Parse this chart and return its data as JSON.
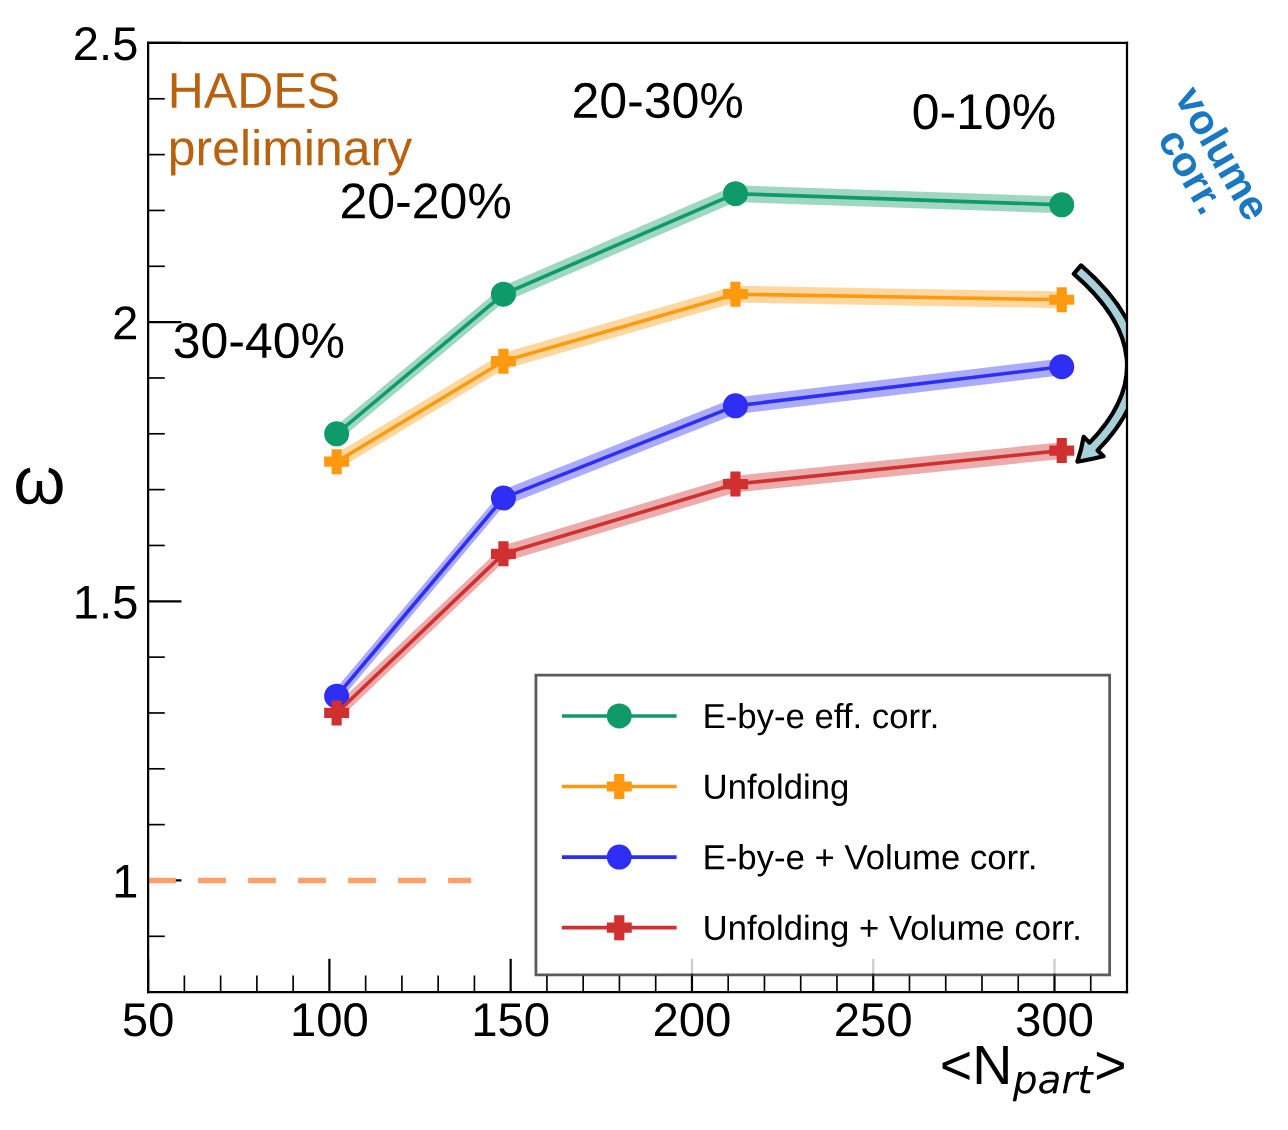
{
  "chart_data": {
    "type": "line",
    "xlabel": "<N$_{part}$>",
    "ylabel": "ω",
    "xlim": [
      50,
      320
    ],
    "xticks": [
      50,
      100,
      150,
      200,
      250,
      300
    ],
    "ylim": [
      0.8,
      2.5
    ],
    "yticks": [
      1,
      1.5,
      2,
      2.5
    ],
    "grid": false,
    "legend": "bottom right",
    "line_style": "solid",
    "series": [
      {
        "name": "E-by-e eff. corr.",
        "color": "#0f9a6a",
        "marker": "circle",
        "x": [
          102,
          148,
          212,
          302
        ],
        "values": [
          1.8,
          2.05,
          2.23,
          2.21
        ],
        "lower": [
          1.785,
          2.035,
          2.215,
          2.195
        ],
        "upper": [
          1.815,
          2.065,
          2.245,
          2.225
        ]
      },
      {
        "name": "Unfolding",
        "color": "#ff9a10",
        "marker": "cross",
        "x": [
          102,
          148,
          212,
          302
        ],
        "values": [
          1.75,
          1.93,
          2.05,
          2.04
        ],
        "lower": [
          1.735,
          1.915,
          2.035,
          2.025
        ],
        "upper": [
          1.765,
          1.945,
          2.065,
          2.055
        ]
      },
      {
        "name": "E-by-e + Volume corr.",
        "color": "#2e2ef5",
        "marker": "circle",
        "x": [
          102,
          148,
          212,
          302
        ],
        "values": [
          1.33,
          1.685,
          1.85,
          1.92
        ],
        "lower": [
          1.315,
          1.67,
          1.835,
          1.905
        ],
        "upper": [
          1.345,
          1.7,
          1.865,
          1.935
        ]
      },
      {
        "name": "Unfolding + Volume corr.",
        "color": "#d03030",
        "marker": "cross",
        "x": [
          102,
          148,
          212,
          302
        ],
        "values": [
          1.3,
          1.585,
          1.71,
          1.77
        ],
        "lower": [
          1.285,
          1.57,
          1.695,
          1.755
        ],
        "upper": [
          1.315,
          1.6,
          1.725,
          1.785
        ]
      }
    ],
    "ref_lines": [
      {
        "axis": "y",
        "value": 1,
        "color": "#ff9f6b",
        "line_style": "dashed"
      }
    ],
    "annotations": [
      "HADES\npreliminary",
      "volume\ncorr.",
      {
        "text": "30-40%",
        "x": 102,
        "y": 1.8
      },
      {
        "text": "20-20%",
        "x": 148,
        "y": 2.05
      },
      {
        "text": "20-30%",
        "x": 212,
        "y": 2.23
      },
      {
        "text": "0-10%",
        "x": 302,
        "y": 2.21
      }
    ]
  }
}
